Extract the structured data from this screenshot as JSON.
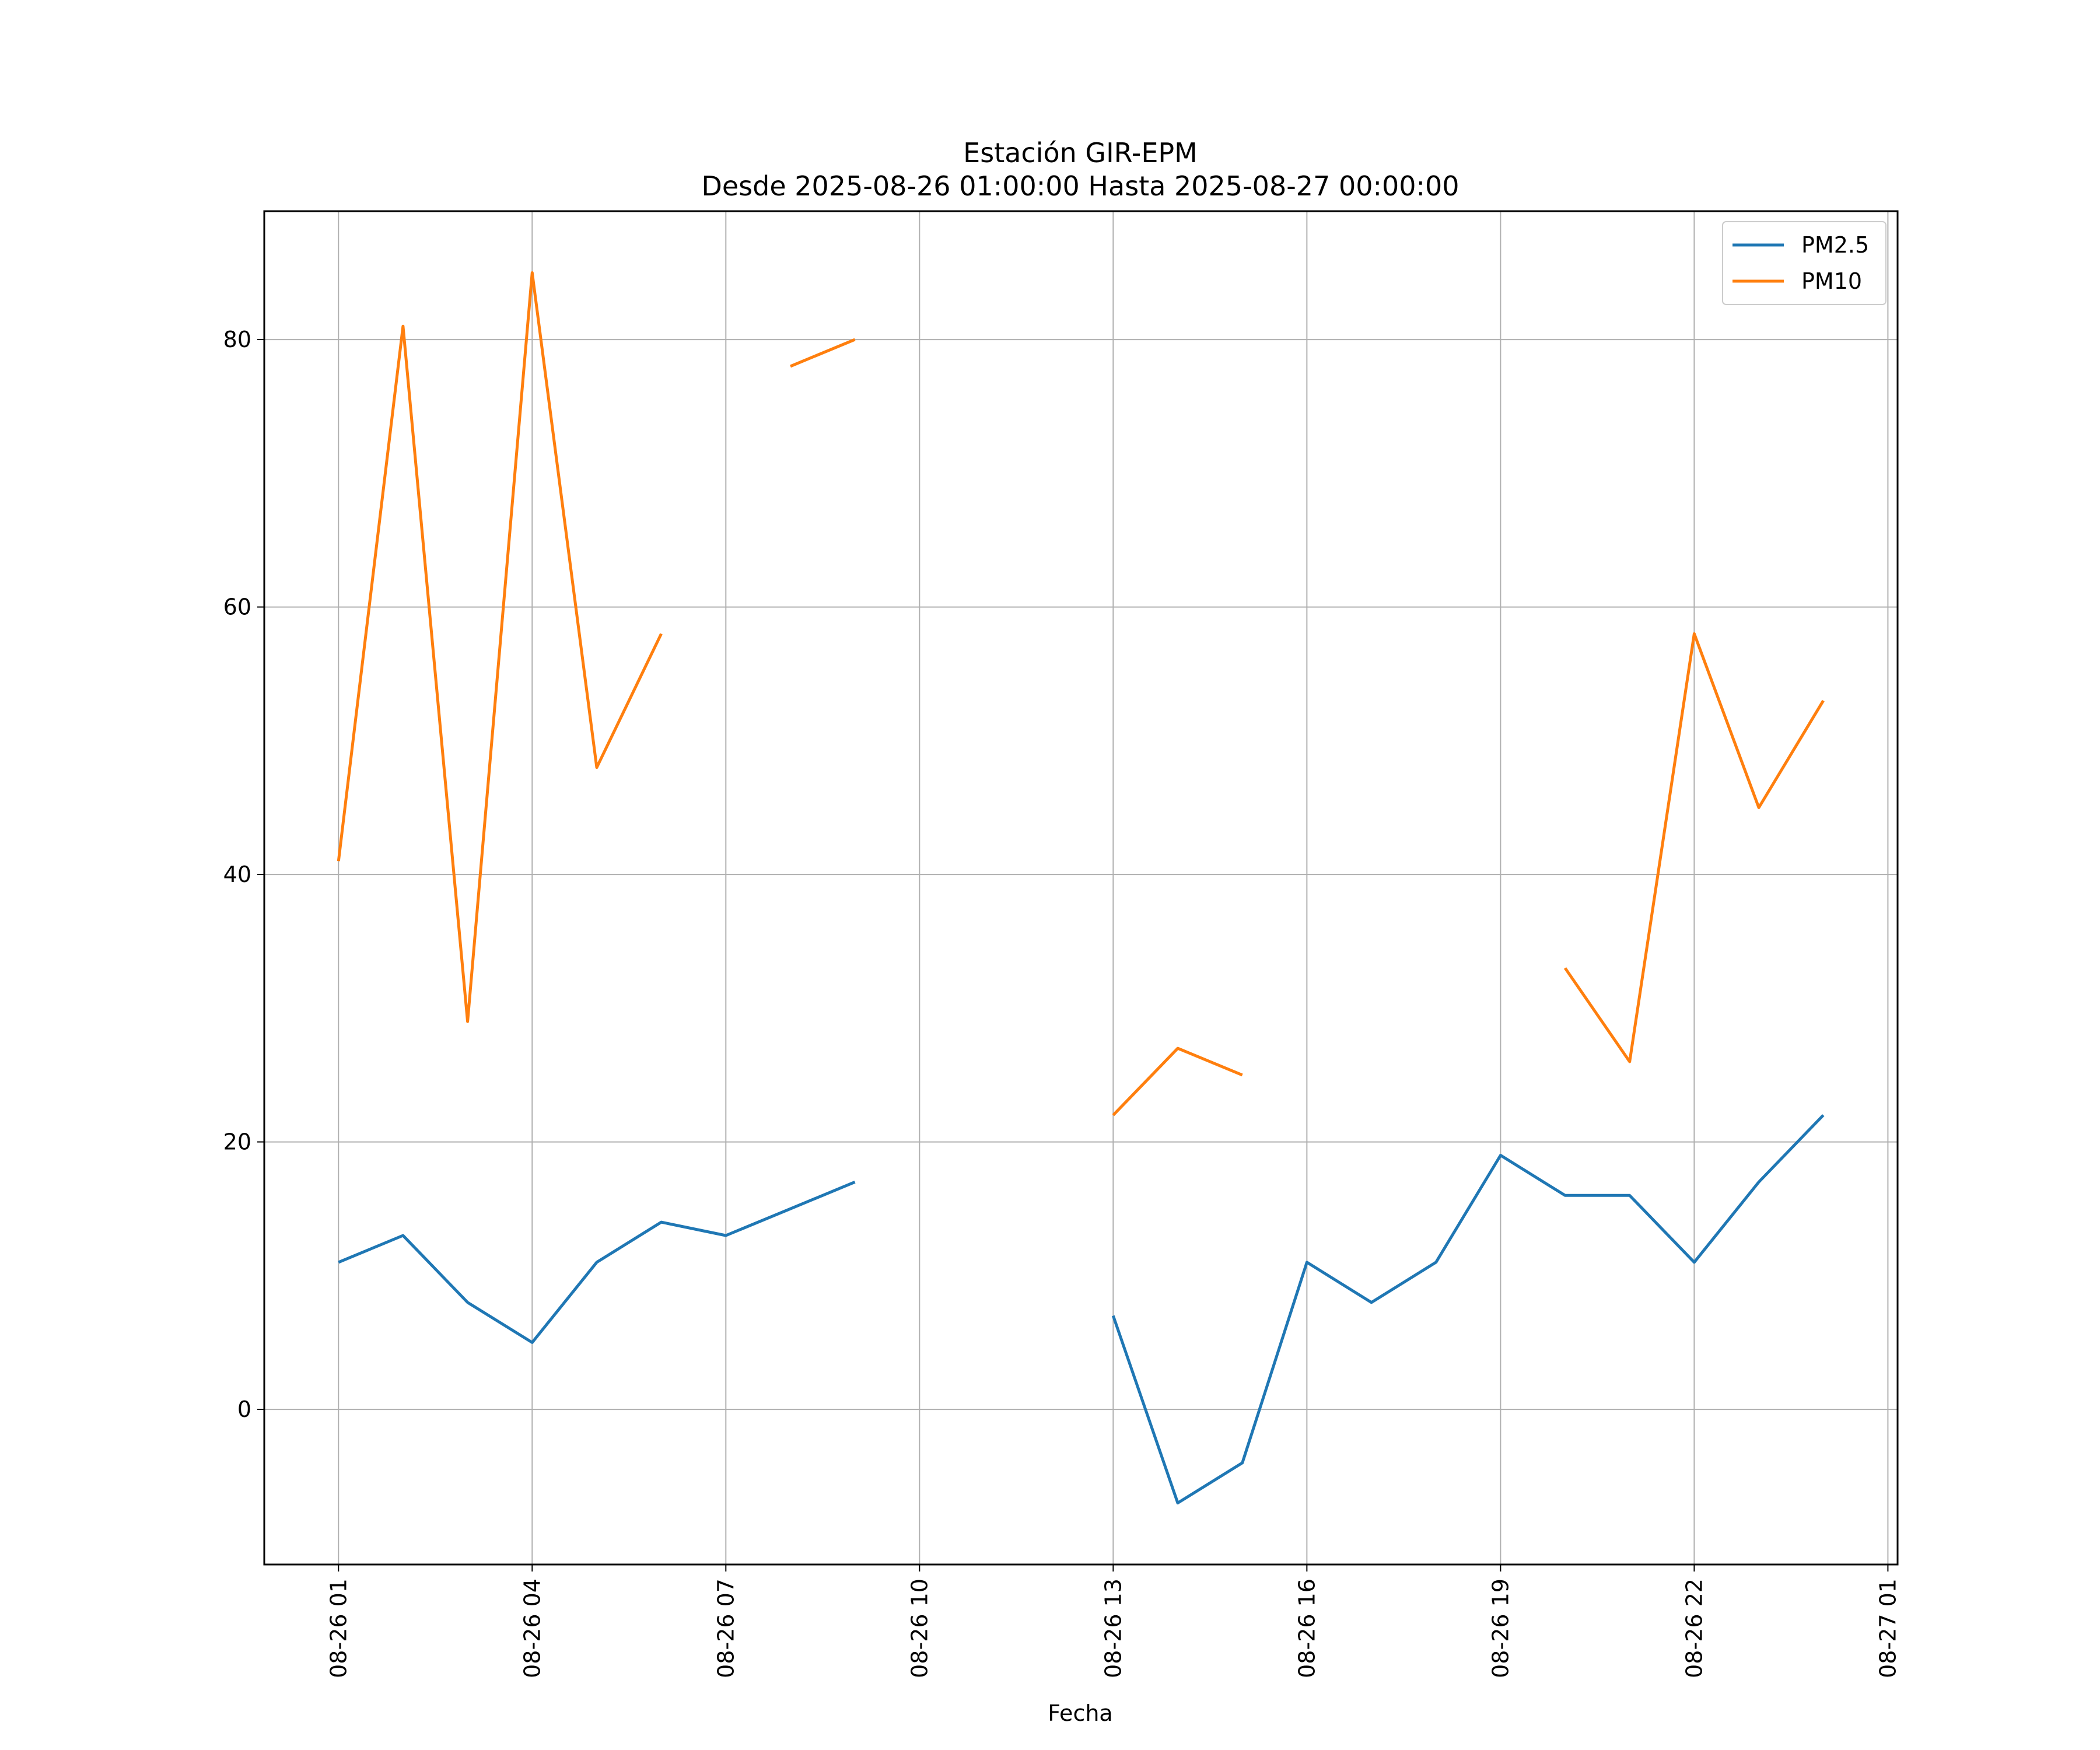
{
  "chart_data": {
    "type": "line",
    "title": "Estación GIR-EPM",
    "subtitle": "Desde 2025-08-26 01:00:00 Hasta 2025-08-27 00:00:00",
    "xlabel": "Fecha",
    "ylabel": "",
    "x": [
      "08-26 01",
      "08-26 02",
      "08-26 03",
      "08-26 04",
      "08-26 05",
      "08-26 06",
      "08-26 07",
      "08-26 08",
      "08-26 09",
      "08-26 10",
      "08-26 11",
      "08-26 12",
      "08-26 13",
      "08-26 14",
      "08-26 15",
      "08-26 16",
      "08-26 17",
      "08-26 18",
      "08-26 19",
      "08-26 20",
      "08-26 21",
      "08-26 22",
      "08-26 23",
      "08-27 00"
    ],
    "x_hours": [
      1,
      2,
      3,
      4,
      5,
      6,
      7,
      8,
      9,
      10,
      11,
      12,
      13,
      14,
      15,
      16,
      17,
      18,
      19,
      20,
      21,
      22,
      23,
      24
    ],
    "x_ticks": [
      "08-26 01",
      "08-26 04",
      "08-26 07",
      "08-26 10",
      "08-26 13",
      "08-26 16",
      "08-26 19",
      "08-26 22",
      "08-27 01"
    ],
    "x_tick_hours": [
      1,
      4,
      7,
      10,
      13,
      16,
      19,
      22,
      25
    ],
    "xlim": [
      -0.15,
      25.15
    ],
    "yticks": [
      0,
      20,
      40,
      60,
      80
    ],
    "ylim": [
      -11.6,
      89.6
    ],
    "grid": true,
    "legend_position": "top-right",
    "series": [
      {
        "name": "PM2.5",
        "color": "#1f77b4",
        "values": [
          11,
          13,
          8,
          5,
          11,
          14,
          13,
          15,
          17,
          null,
          null,
          null,
          7,
          -7,
          -4,
          11,
          8,
          11,
          19,
          16,
          16,
          11,
          17,
          22
        ]
      },
      {
        "name": "PM10",
        "color": "#ff7f0e",
        "values": [
          41,
          81,
          29,
          85,
          48,
          58,
          null,
          78,
          80,
          null,
          null,
          null,
          22,
          27,
          25,
          null,
          null,
          null,
          null,
          33,
          26,
          58,
          45,
          53
        ]
      }
    ]
  }
}
